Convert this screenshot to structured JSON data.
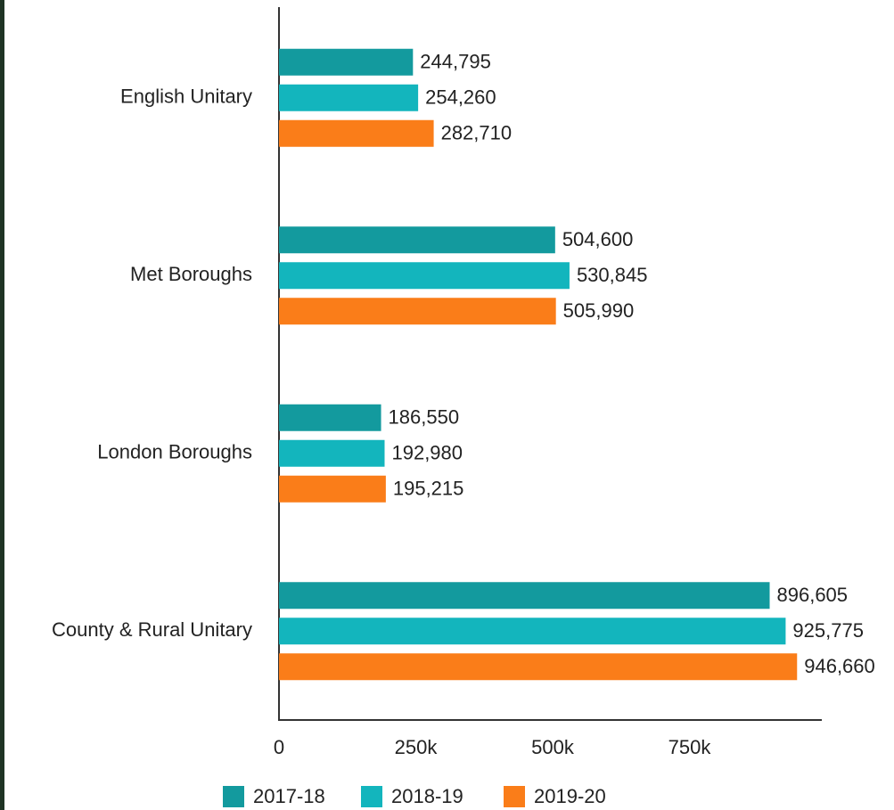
{
  "chart_data": {
    "type": "bar",
    "orientation": "horizontal",
    "categories": [
      "English Unitary",
      "Met Boroughs",
      "London Boroughs",
      "County & Rural Unitary"
    ],
    "series": [
      {
        "name": "2017-18",
        "color": "#139a9e",
        "values": [
          244795,
          504600,
          186550,
          896605
        ],
        "value_labels": [
          "244,795",
          "504,600",
          "186,550",
          "896,605"
        ]
      },
      {
        "name": "2018-19",
        "color": "#13b5bd",
        "values": [
          254260,
          530845,
          192980,
          925775
        ],
        "value_labels": [
          "254,260",
          "530,845",
          "192,980",
          "925,775"
        ]
      },
      {
        "name": "2019-20",
        "color": "#fa7d19",
        "values": [
          282710,
          505990,
          195215,
          946660
        ],
        "value_labels": [
          "282,710",
          "505,990",
          "195,215",
          "946,660"
        ]
      }
    ],
    "xlim": [
      0,
      1000000
    ],
    "xticks": [
      0,
      {
        "value": 250000,
        "label": "250k"
      },
      {
        "value": 500000,
        "label": "500k"
      },
      {
        "value": 750000,
        "label": "750k"
      }
    ],
    "grid": false,
    "legend": "bottom"
  }
}
